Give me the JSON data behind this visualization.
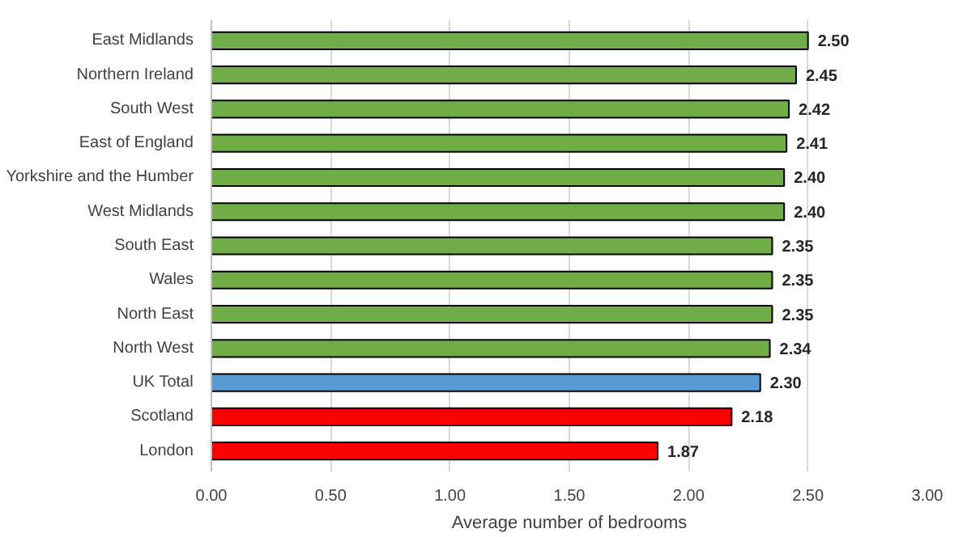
{
  "chart_data": {
    "type": "bar",
    "orientation": "horizontal",
    "xlabel": "Average number of bedrooms",
    "categories": [
      "East Midlands",
      "Northern Ireland",
      "South West",
      "East of England",
      "Yorkshire and the Humber",
      "West Midlands",
      "South East",
      "Wales",
      "North East",
      "North West",
      "UK Total",
      "Scotland",
      "London"
    ],
    "values": [
      2.5,
      2.45,
      2.42,
      2.41,
      2.4,
      2.4,
      2.35,
      2.35,
      2.35,
      2.34,
      2.3,
      2.18,
      1.87
    ],
    "value_labels": [
      "2.50",
      "2.45",
      "2.42",
      "2.41",
      "2.40",
      "2.40",
      "2.35",
      "2.35",
      "2.35",
      "2.34",
      "2.30",
      "2.18",
      "1.87"
    ],
    "colors": [
      "#70ad47",
      "#70ad47",
      "#70ad47",
      "#70ad47",
      "#70ad47",
      "#70ad47",
      "#70ad47",
      "#70ad47",
      "#70ad47",
      "#70ad47",
      "#5b9bd5",
      "#ff0000",
      "#ff0000"
    ],
    "xlim": [
      0,
      3
    ],
    "xticks": [
      {
        "value": 0,
        "label": "0.00"
      },
      {
        "value": 0.5,
        "label": "0.50"
      },
      {
        "value": 1,
        "label": "1.00"
      },
      {
        "value": 1.5,
        "label": "1.50"
      },
      {
        "value": 2,
        "label": "2.00"
      },
      {
        "value": 2.5,
        "label": "2.50"
      },
      {
        "value": 3,
        "label": "3.00"
      }
    ],
    "grid": "x"
  }
}
